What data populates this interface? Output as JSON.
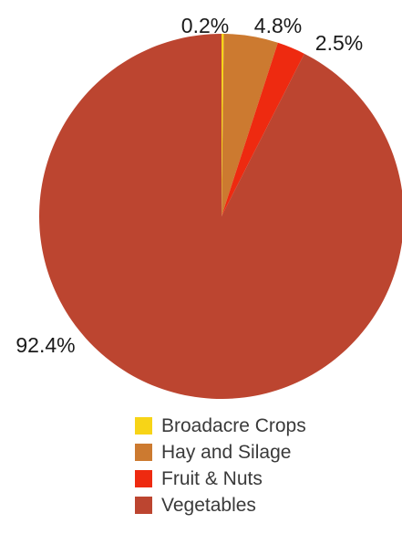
{
  "chart_data": {
    "type": "pie",
    "categories": [
      "Broadacre Crops",
      "Hay and Silage",
      "Fruit & Nuts",
      "Vegetables"
    ],
    "values": [
      0.2,
      4.8,
      2.5,
      92.4
    ],
    "value_labels": [
      "0.2%",
      "4.8%",
      "2.5%",
      "92.4%"
    ],
    "colors": [
      "#F7D417",
      "#CC7A30",
      "#EE2A10",
      "#BC4530"
    ],
    "start_angle": "12 o'clock",
    "direction": "clockwise",
    "legend_position": "bottom"
  }
}
